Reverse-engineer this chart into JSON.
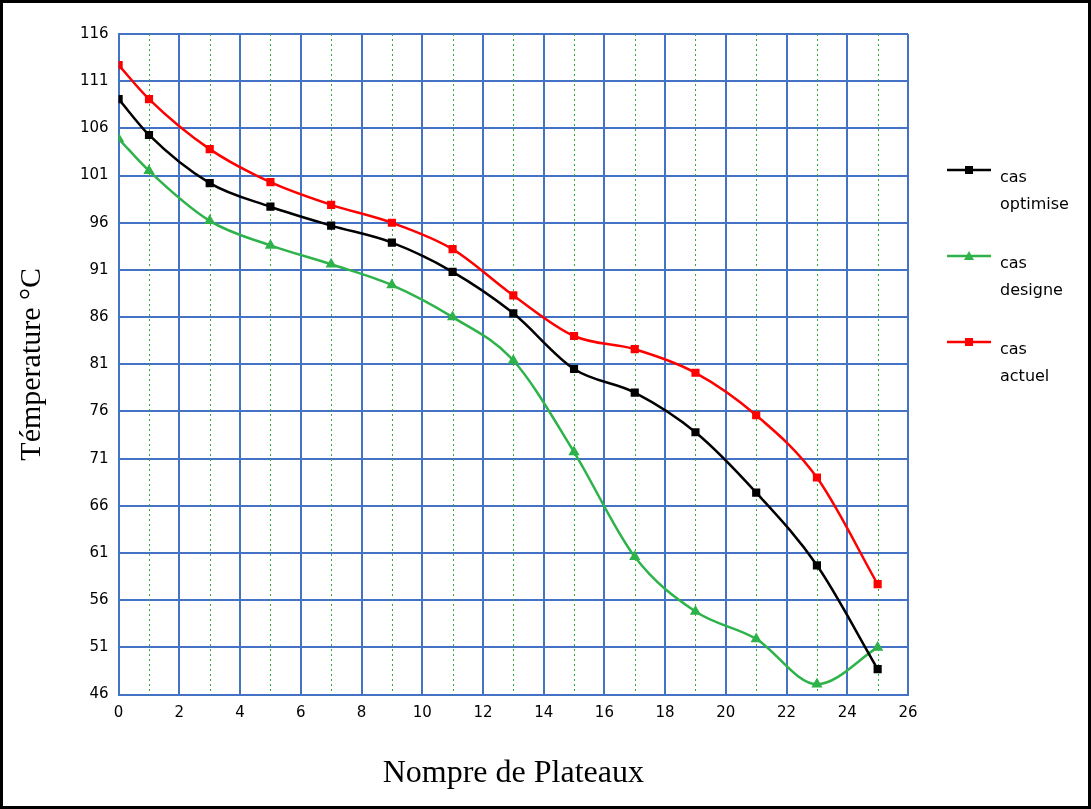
{
  "chart_data": {
    "type": "line",
    "xlabel": "Nompre de Plateaux",
    "ylabel": "Témperature °C",
    "x": [
      0,
      1,
      3,
      5,
      7,
      9,
      11,
      13,
      15,
      17,
      19,
      21,
      23,
      25
    ],
    "xlim": [
      0,
      26
    ],
    "xticks": [
      0,
      {
        "value": 1,
        "label": null
      },
      2,
      {
        "value": 3,
        "label": null
      },
      4,
      {
        "value": 5,
        "label": null
      },
      6,
      {
        "value": 7,
        "label": null
      },
      8,
      {
        "value": 9,
        "label": null
      },
      10,
      {
        "value": 11,
        "label": null
      },
      12,
      {
        "value": 13,
        "label": null
      },
      14,
      {
        "value": 15,
        "label": null
      },
      16,
      {
        "value": 17,
        "label": null
      },
      18,
      {
        "value": 19,
        "label": null
      },
      20,
      {
        "value": 21,
        "label": null
      },
      22,
      {
        "value": 23,
        "label": null
      },
      24,
      {
        "value": 25,
        "label": null
      },
      26
    ],
    "ylim": [
      46,
      116
    ],
    "yticks": [
      46,
      51,
      56,
      61,
      66,
      71,
      76,
      81,
      86,
      91,
      96,
      101,
      106,
      111,
      116
    ],
    "grid": true,
    "legend": "right",
    "line_style": "solid",
    "series": [
      {
        "name": "cas optimise",
        "color": "#000000",
        "marker": "square",
        "values": [
          109.1,
          105.3,
          100.2,
          97.7,
          95.7,
          93.9,
          90.8,
          86.4,
          80.5,
          78.0,
          73.8,
          67.4,
          59.7,
          48.7
        ]
      },
      {
        "name": "cas designe",
        "color": "#2db34a",
        "marker": "triangle",
        "values": [
          104.9,
          101.5,
          96.2,
          93.6,
          91.6,
          89.4,
          86.0,
          81.4,
          71.7,
          60.6,
          54.8,
          51.9,
          47.1,
          51.0
        ]
      },
      {
        "name": "cas actuel",
        "color": "#ff0000",
        "marker": "square",
        "values": [
          112.7,
          109.1,
          103.8,
          100.3,
          97.9,
          96.0,
          93.2,
          88.3,
          84.0,
          82.6,
          80.1,
          75.6,
          69.0,
          57.7
        ]
      }
    ]
  }
}
